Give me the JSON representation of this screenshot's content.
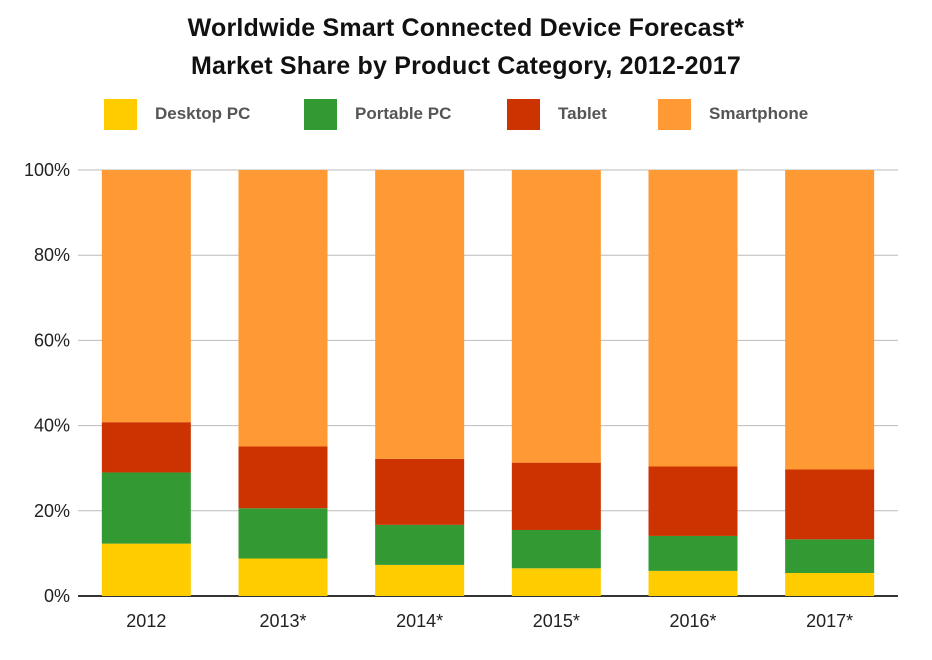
{
  "chart_data": {
    "type": "bar",
    "stacked": true,
    "title": "Worldwide Smart Connected Device Forecast*",
    "subtitle": "Market Share by Product Category, 2012-2017",
    "categories": [
      "2012",
      "2013*",
      "2014*",
      "2015*",
      "2016*",
      "2017*"
    ],
    "series": [
      {
        "name": "Desktop PC",
        "color": "#ffcc00",
        "values": [
          12.3,
          8.8,
          7.3,
          6.5,
          5.9,
          5.4
        ]
      },
      {
        "name": "Portable PC",
        "color": "#339933",
        "values": [
          16.7,
          11.8,
          9.4,
          9.0,
          8.2,
          7.9
        ]
      },
      {
        "name": "Tablet",
        "color": "#cc3300",
        "values": [
          11.8,
          14.5,
          15.5,
          15.8,
          16.3,
          16.4
        ]
      },
      {
        "name": "Smartphone",
        "color": "#ff9933",
        "values": [
          59.2,
          64.9,
          67.8,
          68.7,
          69.6,
          70.3
        ]
      }
    ],
    "y_ticks": [
      "0%",
      "20%",
      "40%",
      "60%",
      "80%",
      "100%"
    ],
    "ylim": [
      0,
      100
    ],
    "xlabel": "",
    "ylabel": "",
    "grid": true,
    "legend_position": "top"
  }
}
